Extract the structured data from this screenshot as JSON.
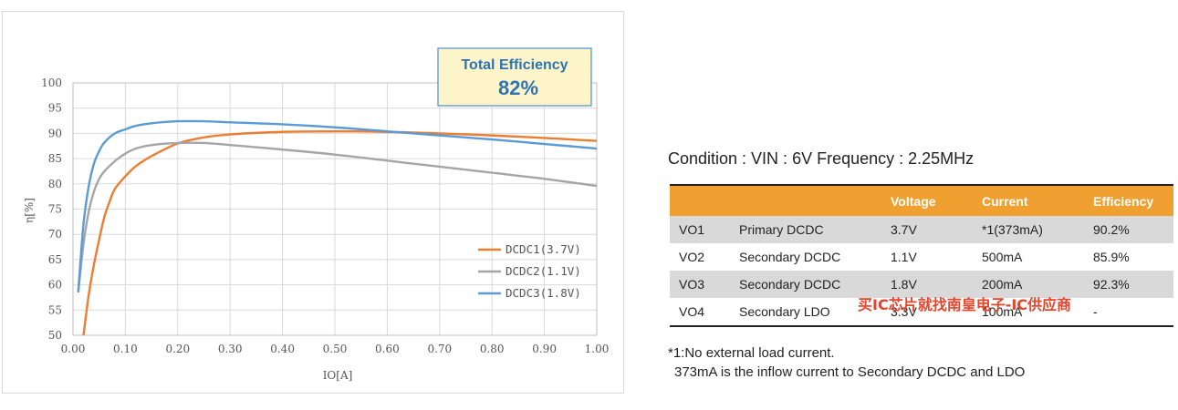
{
  "chart_data": {
    "type": "line",
    "xlabel": "IO[A]",
    "ylabel": "η[%]",
    "xlim": [
      0.0,
      1.0
    ],
    "ylim": [
      50,
      100
    ],
    "x_ticks": [
      "0.00",
      "0.10",
      "0.20",
      "0.30",
      "0.40",
      "0.50",
      "0.60",
      "0.70",
      "0.80",
      "0.90",
      "1.00"
    ],
    "y_ticks": [
      "50",
      "55",
      "60",
      "65",
      "70",
      "75",
      "80",
      "85",
      "90",
      "95",
      "100"
    ],
    "grid": true,
    "legend_position": "bottom-right",
    "callout": {
      "line1": "Total Efficiency",
      "line2": "82%"
    },
    "series": [
      {
        "name": "DCDC1(3.7V)",
        "color": "#ed7d31",
        "points": [
          [
            0.02,
            50
          ],
          [
            0.03,
            58
          ],
          [
            0.04,
            64
          ],
          [
            0.05,
            69
          ],
          [
            0.06,
            73.5
          ],
          [
            0.07,
            76.5
          ],
          [
            0.08,
            79
          ],
          [
            0.1,
            81.5
          ],
          [
            0.12,
            83.5
          ],
          [
            0.15,
            85.5
          ],
          [
            0.2,
            88
          ],
          [
            0.25,
            89.2
          ],
          [
            0.3,
            89.8
          ],
          [
            0.4,
            90.3
          ],
          [
            0.5,
            90.4
          ],
          [
            0.6,
            90.3
          ],
          [
            0.7,
            90.0
          ],
          [
            0.8,
            89.6
          ],
          [
            0.9,
            89.1
          ],
          [
            1.0,
            88.5
          ]
        ]
      },
      {
        "name": "DCDC2(1.1V)",
        "color": "#a5a5a5",
        "points": [
          [
            0.01,
            58.5
          ],
          [
            0.02,
            68
          ],
          [
            0.03,
            74.5
          ],
          [
            0.04,
            78.5
          ],
          [
            0.05,
            81
          ],
          [
            0.06,
            82.5
          ],
          [
            0.08,
            84.5
          ],
          [
            0.1,
            86
          ],
          [
            0.12,
            87
          ],
          [
            0.15,
            87.7
          ],
          [
            0.2,
            88.1
          ],
          [
            0.25,
            88.1
          ],
          [
            0.3,
            87.7
          ],
          [
            0.4,
            86.8
          ],
          [
            0.5,
            85.8
          ],
          [
            0.6,
            84.6
          ],
          [
            0.7,
            83.4
          ],
          [
            0.8,
            82.2
          ],
          [
            0.9,
            81
          ],
          [
            1.0,
            79.6
          ]
        ]
      },
      {
        "name": "DCDC3(1.8V)",
        "color": "#5b9bd5",
        "points": [
          [
            0.01,
            58.5
          ],
          [
            0.02,
            72
          ],
          [
            0.03,
            79.5
          ],
          [
            0.04,
            84
          ],
          [
            0.05,
            86.5
          ],
          [
            0.06,
            88.2
          ],
          [
            0.08,
            90
          ],
          [
            0.1,
            90.8
          ],
          [
            0.12,
            91.5
          ],
          [
            0.15,
            92
          ],
          [
            0.2,
            92.4
          ],
          [
            0.25,
            92.4
          ],
          [
            0.3,
            92.2
          ],
          [
            0.4,
            91.8
          ],
          [
            0.5,
            91.2
          ],
          [
            0.6,
            90.4
          ],
          [
            0.7,
            89.6
          ],
          [
            0.8,
            88.8
          ],
          [
            0.9,
            87.9
          ],
          [
            1.0,
            87.0
          ]
        ]
      }
    ]
  },
  "condition": "Condition : VIN : 6V  Frequency : 2.25MHz",
  "table": {
    "headers": [
      "",
      "",
      "Voltage",
      "Current",
      "Efficiency"
    ],
    "header_color": "#f0a030",
    "rows": [
      [
        "VO1",
        "Primary DCDC",
        "3.7V",
        "*1(373mA)",
        "90.2%"
      ],
      [
        "VO2",
        "Secondary DCDC",
        "1.1V",
        "500mA",
        "85.9%"
      ],
      [
        "VO3",
        "Secondary DCDC",
        "1.8V",
        "200mA",
        "92.3%"
      ],
      [
        "VO4",
        "Secondary LDO",
        "3.3V",
        "100mA",
        "-"
      ]
    ]
  },
  "watermark": "买IC芯片就找南皇电子-IC供应商",
  "footnote": {
    "line1": "*1:No external load current.",
    "line2": "373mA is the inflow current to Secondary DCDC and LDO"
  }
}
